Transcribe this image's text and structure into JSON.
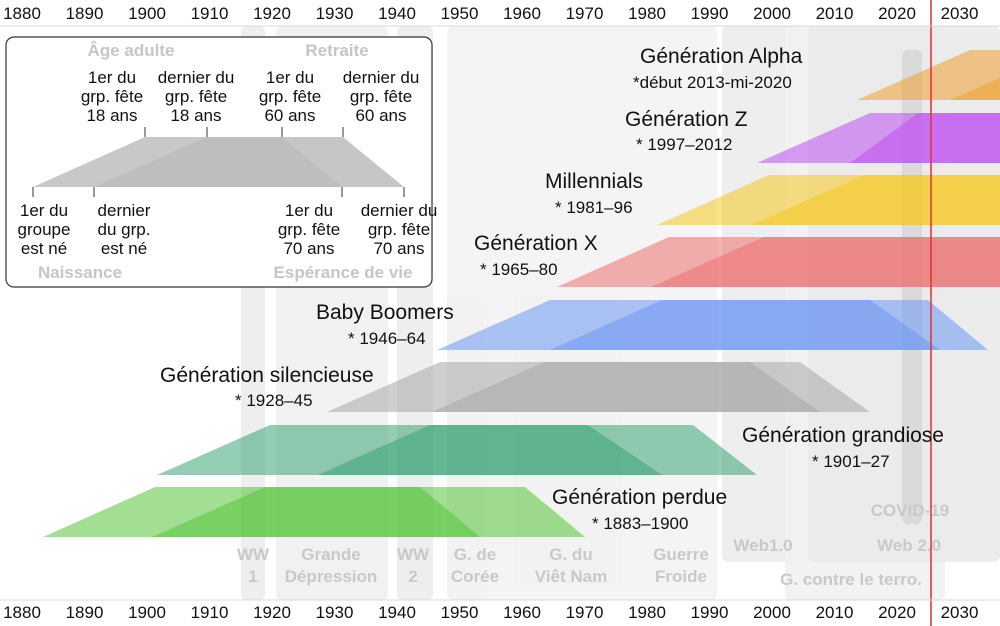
{
  "axis": {
    "years": [
      "1880",
      "1890",
      "1900",
      "1910",
      "1920",
      "1930",
      "1940",
      "1950",
      "1960",
      "1970",
      "1980",
      "1990",
      "2000",
      "2010",
      "2020",
      "2030"
    ]
  },
  "events": {
    "ww1": [
      "WW",
      "1"
    ],
    "depression": [
      "Grande",
      "Dépression"
    ],
    "ww2": [
      "WW",
      "2"
    ],
    "korea": [
      "G. de",
      "Corée"
    ],
    "vietnam": [
      "G. du",
      "Viêt Nam"
    ],
    "coldwar": [
      "Guerre",
      "Froide"
    ],
    "web1": "Web1.0",
    "terror": "G. contre le terro.",
    "web2": "Web 2.0",
    "covid": "COVID-19"
  },
  "generations": [
    {
      "name": "Génération Alpha",
      "years": "*début 2013-mi-2020",
      "color": "#f0a030"
    },
    {
      "name": "Génération Z",
      "years": "* 1997–2012",
      "color": "#c050f0"
    },
    {
      "name": "Millennials",
      "years": "* 1981–96",
      "color": "#f5c820"
    },
    {
      "name": "Génération X",
      "years": "* 1965–80",
      "color": "#ec7070"
    },
    {
      "name": "Baby Boomers",
      "years": "* 1946–64",
      "color": "#6d98f2"
    },
    {
      "name": "Génération silencieuse",
      "years": "* 1928–45",
      "color": "#a8a8a8"
    },
    {
      "name": "Génération grandiose",
      "years": "* 1901–27",
      "color": "#3aa477"
    },
    {
      "name": "Génération perdue",
      "years": "* 1883–1900",
      "color": "#55c43a"
    }
  ],
  "legend": {
    "adulthood": "Âge adulte",
    "retirement": "Retraite",
    "birth": "Naissance",
    "lifespan": "Espérance de vie",
    "top_labels": [
      [
        "1er du",
        "grp. fête",
        "18 ans"
      ],
      [
        "dernier du",
        "grp. fête",
        "18 ans"
      ],
      [
        "1er du",
        "grp. fête",
        "60 ans"
      ],
      [
        "dernier du",
        "grp. fête",
        "60 ans"
      ]
    ],
    "bottom_labels": [
      [
        "1er du",
        "groupe",
        "est né"
      ],
      [
        "dernier",
        "du grp.",
        "est né"
      ],
      [
        "1er du",
        "grp. fête",
        "70 ans"
      ],
      [
        "dernier du",
        "grp. fête",
        "70 ans"
      ]
    ]
  },
  "current_year_line_color": "#e03030"
}
